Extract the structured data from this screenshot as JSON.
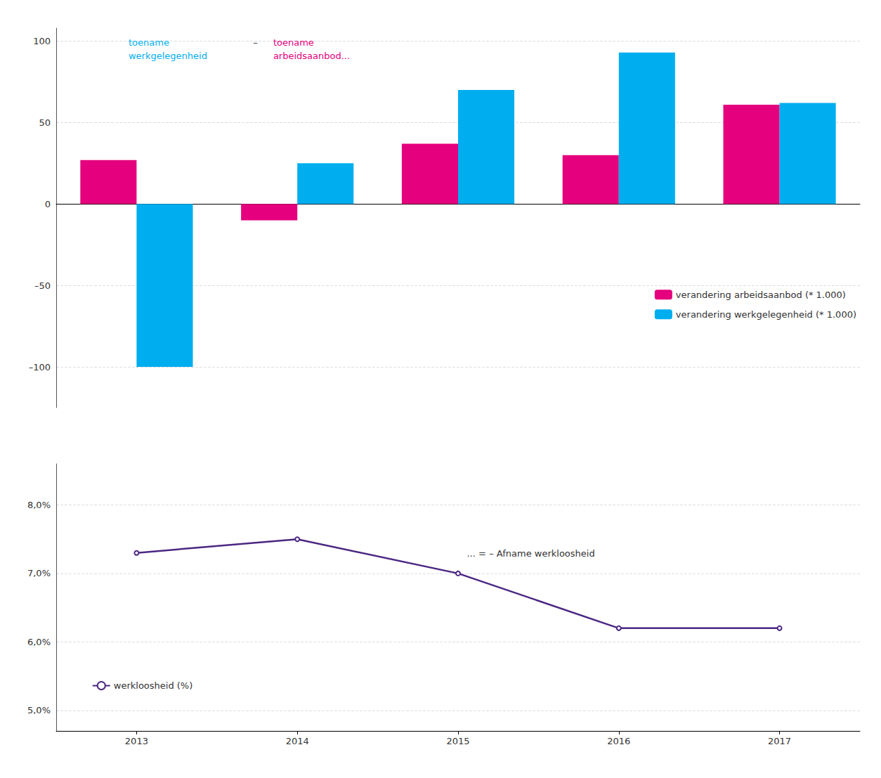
{
  "chart_data": [
    {
      "type": "bar",
      "categories": [
        "2013",
        "2014",
        "2015",
        "2016",
        "2017"
      ],
      "series": [
        {
          "name": "verandering arbeidsaanbod (* 1.000)",
          "color": "#E5007D",
          "values": [
            27,
            -10,
            37,
            30,
            61
          ]
        },
        {
          "name": "verandering werkgelegenheid (* 1.000)",
          "color": "#00AEEF",
          "values": [
            -100,
            25,
            70,
            93,
            62
          ]
        }
      ],
      "ylim": [
        -125,
        108
      ],
      "yticks": [
        {
          "value": -100,
          "label": "–100"
        },
        {
          "value": -50,
          "label": "–50"
        },
        0,
        50,
        100
      ],
      "grid": true,
      "legend": "right",
      "tick_labels": "y",
      "annotations": [
        {
          "text": "toename\nwerkgelegenheid",
          "color": "#00AEEF"
        },
        {
          "text": "–"
        },
        {
          "text": "toename\narbeidsaanbod...",
          "color": "#E5007D"
        }
      ]
    },
    {
      "type": "line",
      "categories": [
        "2013",
        "2014",
        "2015",
        "2016",
        "2017"
      ],
      "series": [
        {
          "name": "werkloosheid (%)",
          "color": "#4B2782",
          "values": [
            7.3,
            7.5,
            7.0,
            6.2,
            6.2
          ]
        }
      ],
      "ylim": [
        4.7,
        8.6
      ],
      "yticks": [
        {
          "value": 5.0,
          "label": "5,0%"
        },
        {
          "value": 6.0,
          "label": "6,0%"
        },
        {
          "value": 7.0,
          "label": "7,0%"
        },
        {
          "value": 8.0,
          "label": "8,0%"
        }
      ],
      "grid": true,
      "legend": "lower left",
      "annotations": [
        {
          "text": "... = – Afname werkloosheid"
        }
      ]
    }
  ]
}
